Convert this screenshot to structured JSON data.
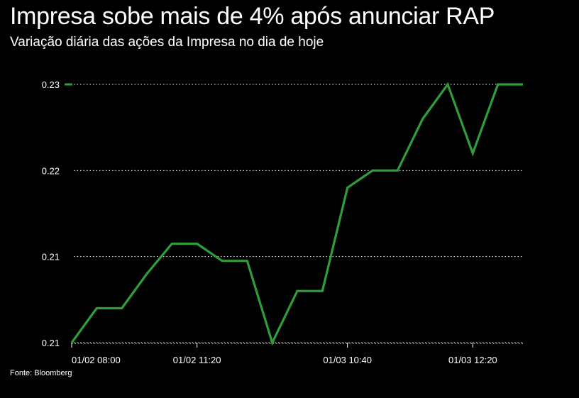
{
  "header": {
    "title": "Impresa sobe mais de 4% após anunciar RAP",
    "subtitle": "Variação diária das ações da Impresa no dia de hoje"
  },
  "footer": {
    "source": "Fonte: Bloomberg"
  },
  "colors": {
    "background": "#000000",
    "line": "#2e9e3a",
    "grid": "#ffffff",
    "text": "#ffffff"
  },
  "chart_data": {
    "type": "line",
    "title": "Impresa sobe mais de 4% após anunciar RAP",
    "subtitle": "Variação diária das ações da Impresa no dia de hoje",
    "xlabel": "",
    "ylabel": "",
    "ylim": [
      0.205,
      0.235
    ],
    "yticks": [
      {
        "value": 0.205,
        "label": "0.21"
      },
      {
        "value": 0.215,
        "label": "0.21"
      },
      {
        "value": 0.225,
        "label": "0.22"
      },
      {
        "value": 0.235,
        "label": "0.23"
      }
    ],
    "xticks": [
      {
        "index": 0,
        "label": "01/02 08:00"
      },
      {
        "index": 5,
        "label": "01/02 11:20"
      },
      {
        "index": 11,
        "label": "01/03 10:40"
      },
      {
        "index": 16,
        "label": "01/03 12:20"
      }
    ],
    "grid": "horizontal dotted",
    "legend": "left edge marker only",
    "series": [
      {
        "values": [
          0.205,
          0.209,
          0.209,
          0.213,
          0.2165,
          0.2165,
          0.2145,
          0.2145,
          0.205,
          0.211,
          0.211,
          0.223,
          0.225,
          0.225,
          0.231,
          0.235,
          0.227,
          0.235,
          0.235
        ]
      }
    ]
  }
}
